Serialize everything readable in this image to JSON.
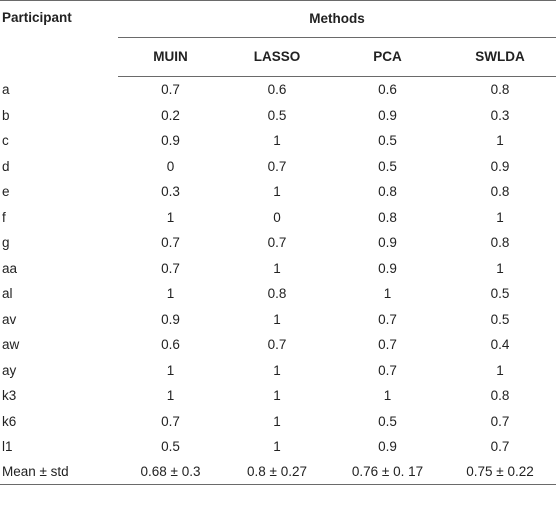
{
  "table": {
    "participant_header": "Participant",
    "methods_header": "Methods",
    "method_headers": [
      "MUIN",
      "LASSO",
      "PCA",
      "SWLDA"
    ],
    "rows": [
      {
        "participant": "a",
        "values": [
          "0.7",
          "0.6",
          "0.6",
          "0.8"
        ]
      },
      {
        "participant": "b",
        "values": [
          "0.2",
          "0.5",
          "0.9",
          "0.3"
        ]
      },
      {
        "participant": "c",
        "values": [
          "0.9",
          "1",
          "0.5",
          "1"
        ]
      },
      {
        "participant": "d",
        "values": [
          "0",
          "0.7",
          "0.5",
          "0.9"
        ]
      },
      {
        "participant": "e",
        "values": [
          "0.3",
          "1",
          "0.8",
          "0.8"
        ]
      },
      {
        "participant": "f",
        "values": [
          "1",
          "0",
          "0.8",
          "1"
        ]
      },
      {
        "participant": "g",
        "values": [
          "0.7",
          "0.7",
          "0.9",
          "0.8"
        ]
      },
      {
        "participant": "aa",
        "values": [
          "0.7",
          "1",
          "0.9",
          "1"
        ]
      },
      {
        "participant": "al",
        "values": [
          "1",
          "0.8",
          "1",
          "0.5"
        ]
      },
      {
        "participant": "av",
        "values": [
          "0.9",
          "1",
          "0.7",
          "0.5"
        ]
      },
      {
        "participant": "aw",
        "values": [
          "0.6",
          "0.7",
          "0.7",
          "0.4"
        ]
      },
      {
        "participant": "ay",
        "values": [
          "1",
          "1",
          "0.7",
          "1"
        ]
      },
      {
        "participant": "k3",
        "values": [
          "1",
          "1",
          "1",
          "0.8"
        ]
      },
      {
        "participant": "k6",
        "values": [
          "0.7",
          "1",
          "0.5",
          "0.7"
        ]
      },
      {
        "participant": "l1",
        "values": [
          "0.5",
          "1",
          "0.9",
          "0.7"
        ]
      }
    ],
    "summary": {
      "participant": "Mean ± std",
      "values": [
        "0.68 ± 0.3",
        "0.8 ± 0.27",
        "0.76 ± 0. 17",
        "0.75 ± 0.22"
      ]
    }
  }
}
